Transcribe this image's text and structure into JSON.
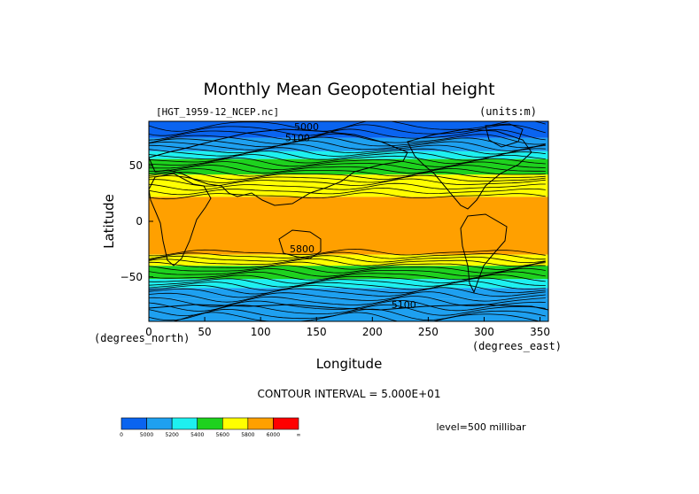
{
  "chart_data": {
    "type": "heatmap",
    "title": "Monthly Mean Geopotential height",
    "subtitle_left": "[HGT_1959-12_NCEP.nc]",
    "subtitle_right": "(units:m)",
    "xlabel": "Longitude",
    "ylabel": "Latitude",
    "x_unit_label": "(degrees_east)",
    "y_unit_label": "(degrees_north)",
    "xlim": [
      0,
      357.5
    ],
    "ylim": [
      -90,
      90
    ],
    "x_ticks": [
      0,
      50,
      100,
      150,
      200,
      250,
      300,
      350
    ],
    "y_ticks": [
      -50,
      0,
      50
    ],
    "contour_interval_text": "CONTOUR INTERVAL = 5.000E+01",
    "level_text": "level=500 millibar",
    "color_levels": [
      {
        "min": null,
        "max": 5000,
        "color": "#0a64f0"
      },
      {
        "min": 5000,
        "max": 5200,
        "color": "#1ea0f0"
      },
      {
        "min": 5200,
        "max": 5400,
        "color": "#1ef0f0"
      },
      {
        "min": 5400,
        "max": 5600,
        "color": "#1ed21e"
      },
      {
        "min": 5600,
        "max": 5800,
        "color": "#ffff00"
      },
      {
        "min": 5800,
        "max": 6000,
        "color": "#ffa000"
      },
      {
        "min": 6000,
        "max": null,
        "color": "#ff0000"
      }
    ],
    "colorbar_labels": [
      "0",
      "5000",
      "5200",
      "5400",
      "5600",
      "5800",
      "6000",
      "∞"
    ],
    "zonal_bands": [
      {
        "lat_from": 90,
        "lat_to": 75,
        "color_index": 0
      },
      {
        "lat_from": 75,
        "lat_to": 63,
        "color_index": 1
      },
      {
        "lat_from": 63,
        "lat_to": 56,
        "color_index": 2
      },
      {
        "lat_from": 56,
        "lat_to": 42,
        "color_index": 3
      },
      {
        "lat_from": 42,
        "lat_to": 33,
        "color_index": 4
      },
      {
        "lat_from": 33,
        "lat_to": 22,
        "color_index": 4
      },
      {
        "lat_from": 22,
        "lat_to": -30,
        "color_index": 5
      },
      {
        "lat_from": -30,
        "lat_to": -40,
        "color_index": 4
      },
      {
        "lat_from": -40,
        "lat_to": -52,
        "color_index": 3
      },
      {
        "lat_from": -52,
        "lat_to": -60,
        "color_index": 2
      },
      {
        "lat_from": -60,
        "lat_to": -70,
        "color_index": 1
      },
      {
        "lat_from": -70,
        "lat_to": -90,
        "color_index": 1
      }
    ],
    "contour_labels": [
      {
        "text": "5000",
        "lon": 130,
        "lat": 82
      },
      {
        "text": "5100",
        "lon": 122,
        "lat": 72
      },
      {
        "text": "5800",
        "lon": 126,
        "lat": -28
      },
      {
        "text": "5100",
        "lon": 217,
        "lat": -78
      }
    ]
  }
}
